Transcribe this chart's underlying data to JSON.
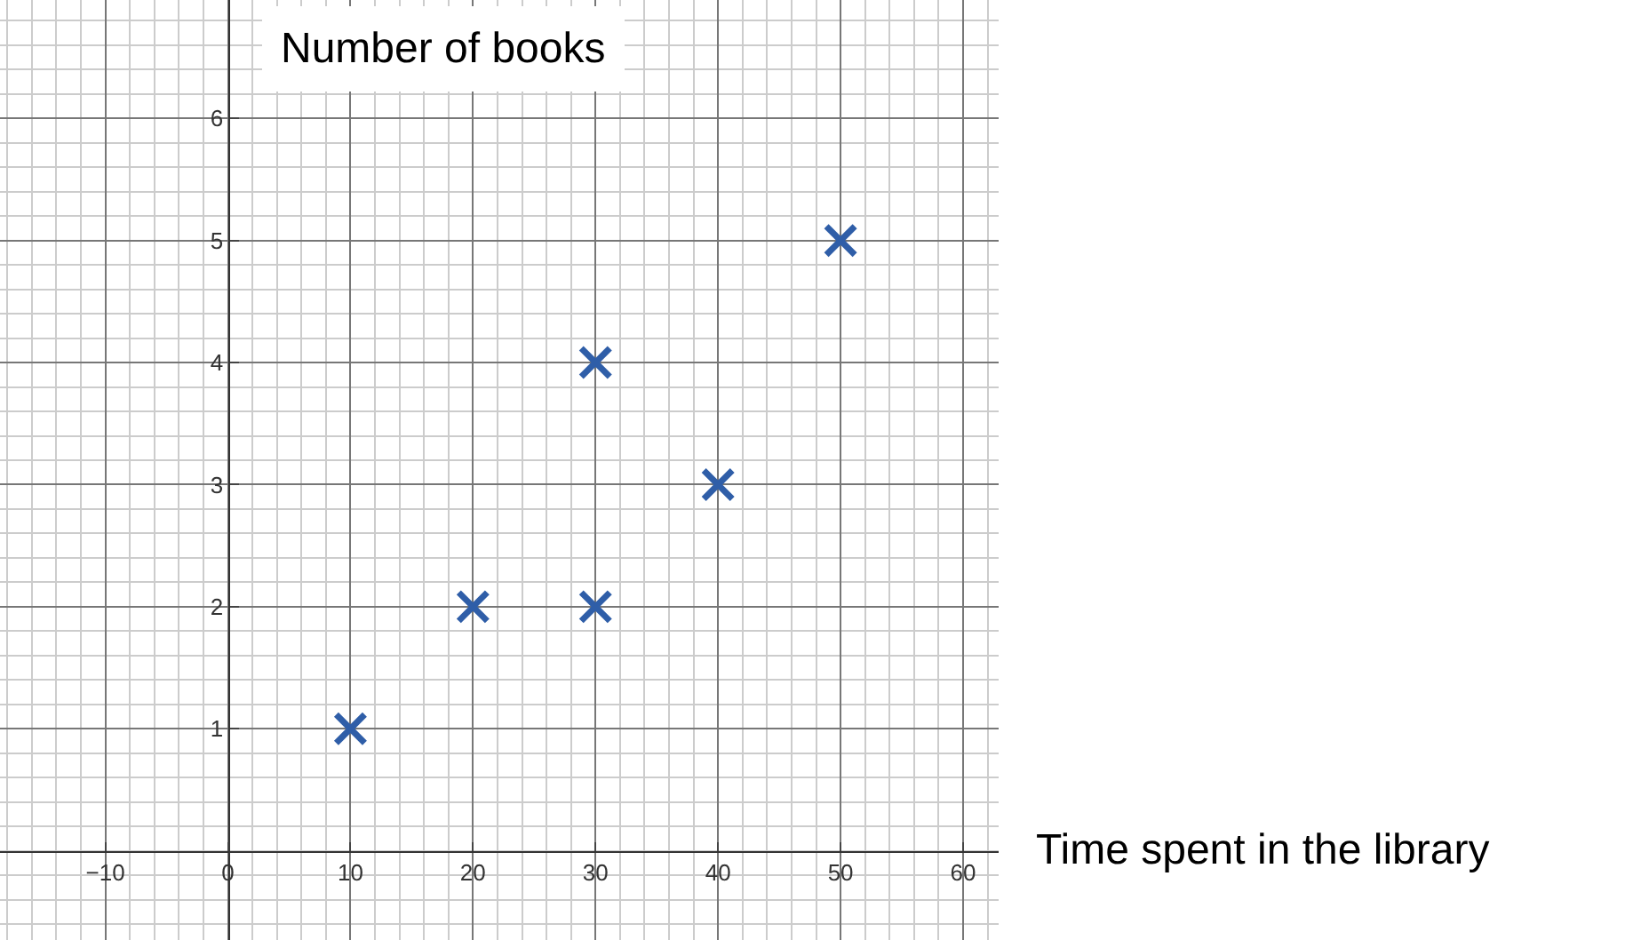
{
  "chart_data": {
    "type": "scatter",
    "xlabel": "Time spent in the library",
    "ylabel": "Number of books",
    "x": [
      10,
      20,
      30,
      30,
      40,
      50
    ],
    "series": [
      {
        "color": "#2f5ea8",
        "values": [
          1,
          2,
          2,
          4,
          3,
          5
        ]
      }
    ],
    "xlim": [
      -18.6,
      62.9
    ],
    "ylim": [
      -0.73,
      6.97
    ],
    "xticks": [
      -10,
      0,
      10,
      20,
      30,
      40,
      50,
      60
    ],
    "yticks": [
      1,
      2,
      3,
      4,
      5,
      6
    ],
    "grid": true,
    "marker": "cross",
    "legend": false
  }
}
